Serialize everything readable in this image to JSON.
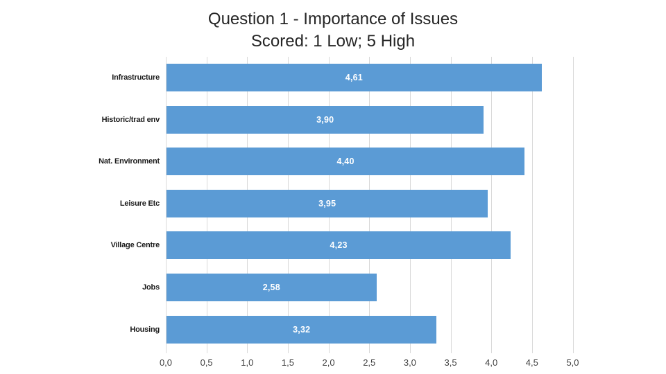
{
  "title": {
    "line1": "Question 1 - Importance of Issues",
    "line2": "Scored: 1 Low; 5 High"
  },
  "chart_data": {
    "type": "bar",
    "orientation": "horizontal",
    "title": "Question 1 - Importance of Issues Scored: 1 Low; 5 High",
    "categories": [
      "Infrastructure",
      "Historic/trad env",
      "Nat. Environment",
      "Leisure Etc",
      "Village Centre",
      "Jobs",
      "Housing"
    ],
    "values": [
      4.61,
      3.9,
      4.4,
      3.95,
      4.23,
      2.58,
      3.32
    ],
    "value_labels": [
      "4,61",
      "3,90",
      "4,40",
      "3,95",
      "4,23",
      "2,58",
      "3,32"
    ],
    "xlabel": "",
    "ylabel": "",
    "xlim": [
      0,
      5
    ],
    "x_tick_step": 0.5,
    "x_tick_labels": [
      "0,0",
      "0,5",
      "1,0",
      "1,5",
      "2,0",
      "2,5",
      "3,0",
      "3,5",
      "4,0",
      "4,5",
      "5,0"
    ],
    "grid": true,
    "legend": "none",
    "bar_color": "#5b9bd5",
    "gridline_color": "#d9d9d9",
    "value_label_color": "#ffffff",
    "axis_text_color": "#3f3f3f",
    "category_text_color": "#1a1a1a"
  }
}
